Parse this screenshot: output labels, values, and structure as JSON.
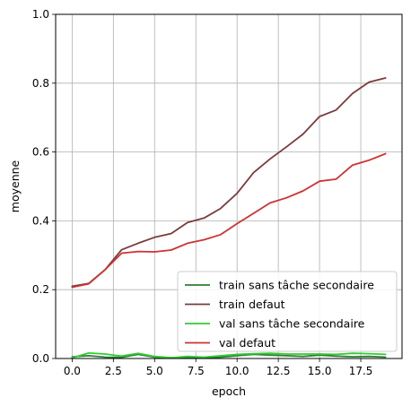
{
  "chart_data": {
    "type": "line",
    "xlabel": "epoch",
    "ylabel": "moyenne",
    "xlim": [
      -1,
      20
    ],
    "ylim": [
      0,
      1.0
    ],
    "grid": true,
    "legend_placement": "lower-right",
    "xticks": [
      "0.0",
      "2.5",
      "5.0",
      "7.5",
      "10.0",
      "12.5",
      "15.0",
      "17.5"
    ],
    "xtick_values": [
      0,
      2.5,
      5,
      7.5,
      10,
      12.5,
      15,
      17.5
    ],
    "yticks": [
      "0.0",
      "0.2",
      "0.4",
      "0.6",
      "0.8",
      "1.0"
    ],
    "ytick_values": [
      0,
      0.2,
      0.4,
      0.6,
      0.8,
      1.0
    ],
    "x": [
      0,
      1,
      2,
      3,
      4,
      5,
      6,
      7,
      8,
      9,
      10,
      11,
      12,
      13,
      14,
      15,
      16,
      17,
      18,
      19
    ],
    "series": [
      {
        "name": "train sans tâche secondaire",
        "color": "#2e7d32",
        "values": [
          0.005,
          0.008,
          0.004,
          0.003,
          0.012,
          0.004,
          0.002,
          0.003,
          0.002,
          0.004,
          0.008,
          0.012,
          0.01,
          0.008,
          0.006,
          0.01,
          0.007,
          0.005,
          0.006,
          0.004
        ]
      },
      {
        "name": "train defaut",
        "color": "#7b3b3b",
        "values": [
          0.21,
          0.218,
          0.258,
          0.316,
          0.335,
          0.352,
          0.363,
          0.395,
          0.408,
          0.436,
          0.48,
          0.54,
          0.58,
          0.615,
          0.652,
          0.703,
          0.722,
          0.77,
          0.803,
          0.815
        ]
      },
      {
        "name": "val sans tâche secondaire",
        "color": "#33cc33",
        "values": [
          0.002,
          0.016,
          0.013,
          0.007,
          0.015,
          0.006,
          0.002,
          0.006,
          0.004,
          0.008,
          0.012,
          0.014,
          0.015,
          0.013,
          0.013,
          0.013,
          0.012,
          0.015,
          0.014,
          0.012
        ]
      },
      {
        "name": "val defaut",
        "color": "#cc3333",
        "values": [
          0.207,
          0.217,
          0.258,
          0.306,
          0.311,
          0.31,
          0.315,
          0.335,
          0.345,
          0.36,
          0.392,
          0.422,
          0.452,
          0.467,
          0.487,
          0.515,
          0.521,
          0.562,
          0.576,
          0.595
        ]
      }
    ]
  }
}
